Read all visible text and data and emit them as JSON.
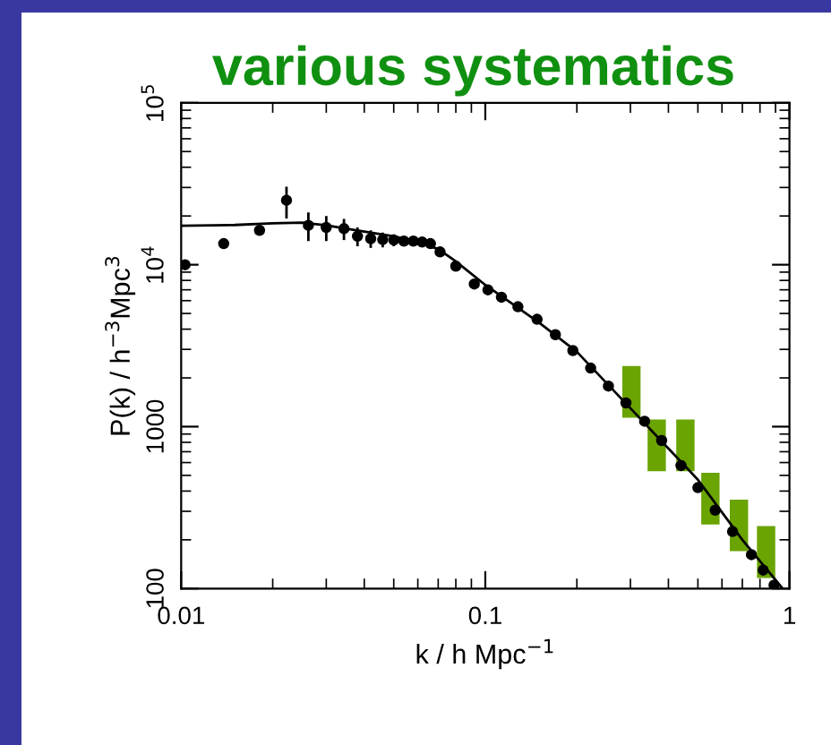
{
  "chart_data": {
    "type": "scatter",
    "title": "various systematics",
    "xlabel": "k / h Mpc$^{−1}$",
    "ylabel": "P(k) / h$^{−3}$Mpc$^{3}$",
    "log": "xy",
    "xlim": [
      0.01,
      1
    ],
    "ylim": [
      100,
      100000
    ],
    "xticks": [
      0.01,
      0.1,
      1
    ],
    "yticks": [
      100,
      1000,
      {
        "value": 10000,
        "label": "10$^{4}$"
      },
      {
        "value": 100000,
        "label": "10$^{5}$"
      }
    ],
    "grid": false,
    "marker": "circle",
    "series": [
      {
        "color": "#000000",
        "x": [
          0.0103,
          0.0138,
          0.0181,
          0.0222,
          0.0262,
          0.03,
          0.0343,
          0.038,
          0.042,
          0.046,
          0.05,
          0.054,
          0.058,
          0.062,
          0.066,
          0.071,
          0.08,
          0.092,
          0.102,
          0.113,
          0.128,
          0.148,
          0.17,
          0.194,
          0.222,
          0.254,
          0.29,
          0.334,
          0.38,
          0.44,
          0.5,
          0.57,
          0.65,
          0.75,
          0.82,
          0.89
        ],
        "values": [
          10000,
          13500,
          16300,
          25000,
          17500,
          17000,
          16700,
          15000,
          14500,
          14300,
          14200,
          14000,
          14000,
          13800,
          13500,
          12000,
          9800,
          7600,
          7000,
          6300,
          5500,
          4600,
          3700,
          2950,
          2300,
          1780,
          1400,
          1080,
          820,
          575,
          420,
          305,
          225,
          162,
          130,
          105
        ],
        "errors": [
          null,
          null,
          null,
          [
            19300,
            30300
          ],
          [
            14000,
            21000
          ],
          [
            14000,
            20000
          ],
          [
            14200,
            19200
          ],
          [
            13000,
            17000
          ],
          [
            12700,
            16300
          ],
          [
            12800,
            15800
          ],
          [
            13000,
            15400
          ],
          [
            13000,
            15000
          ],
          null,
          null,
          null,
          null,
          null,
          null,
          null,
          null,
          null,
          null,
          null,
          null,
          null,
          null,
          null,
          null,
          null,
          null,
          null,
          null,
          null,
          null,
          null,
          null
        ]
      },
      {
        "type": "line",
        "color": "#000000",
        "marker": "none",
        "line_style": "solid",
        "x": [
          0.01,
          0.015,
          0.02,
          0.025,
          0.03,
          0.04,
          0.05,
          0.06,
          0.07,
          0.08,
          0.1,
          0.15,
          0.2,
          0.3,
          0.5,
          0.7,
          0.95
        ],
        "values": [
          17400,
          17600,
          18000,
          18200,
          17500,
          16000,
          15000,
          13800,
          12500,
          10500,
          7500,
          4400,
          2900,
          1300,
          470,
          200,
          100
        ]
      },
      {
        "type": "bar",
        "color": "#6aa400",
        "x": [
          0.303,
          0.367,
          0.456,
          0.551,
          0.684,
          0.84
        ],
        "base": [
          1135,
          531,
          531,
          249,
          170,
          116
        ],
        "values": [
          1235,
          576,
          576,
          269,
          184,
          127
        ]
      }
    ]
  }
}
